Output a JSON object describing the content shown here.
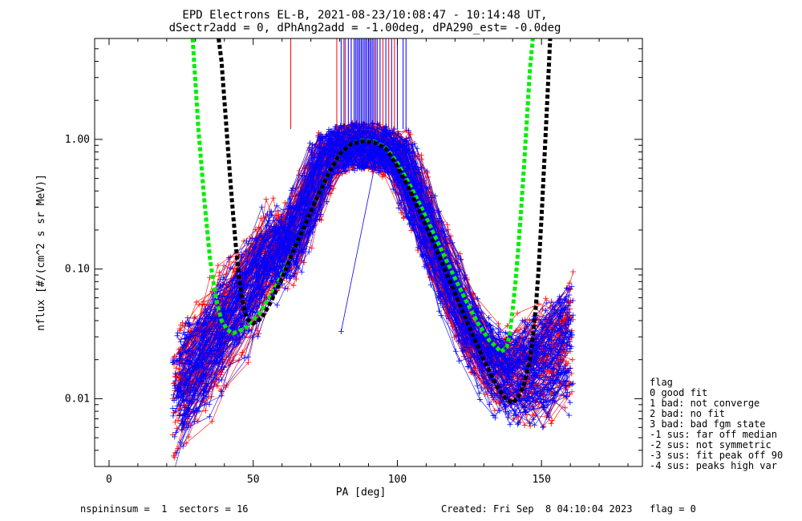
{
  "chart_data": {
    "type": "line",
    "title": "EPD Electrons EL-B, 2021-08-23/10:08:47 - 10:14:48 UT,",
    "subtitle": "dSectr2add = 0, dPhAng2add = -1.00deg, dPA290_est=  -0.0deg",
    "xlabel": "PA [deg]",
    "ylabel": "nflux [#/(cm^2 s sr MeV)]",
    "xlim": [
      -5,
      185
    ],
    "ylim": [
      0.003,
      6.0
    ],
    "yscale": "log",
    "x_ticks": [
      {
        "value": 0,
        "label": "0"
      },
      {
        "value": 50,
        "label": "50"
      },
      {
        "value": 100,
        "label": "100"
      },
      {
        "value": 150,
        "label": "150"
      }
    ],
    "y_ticks": [
      {
        "value": 0.01,
        "label": "0.01"
      },
      {
        "value": 0.1,
        "label": "0.10"
      },
      {
        "value": 1.0,
        "label": "1.00"
      }
    ],
    "colors": {
      "red": "#ff0000",
      "blue": "#0000ff",
      "green": "#00ee00",
      "black": "#000000"
    },
    "fit_green": {
      "name": "",
      "x": [
        29,
        31,
        33,
        35,
        37,
        39,
        41,
        43,
        45,
        48,
        52,
        56,
        60,
        64,
        68,
        72,
        76,
        80,
        84,
        88,
        92,
        96,
        100,
        104,
        108,
        112,
        116,
        120,
        124,
        128,
        132,
        136,
        138,
        139,
        140,
        141,
        142,
        143,
        144,
        145,
        146,
        147
      ],
      "y": [
        6.0,
        1.2,
        0.35,
        0.12,
        0.06,
        0.04,
        0.034,
        0.032,
        0.033,
        0.036,
        0.045,
        0.062,
        0.09,
        0.14,
        0.22,
        0.35,
        0.54,
        0.77,
        0.92,
        0.98,
        0.96,
        0.86,
        0.66,
        0.46,
        0.31,
        0.2,
        0.13,
        0.085,
        0.056,
        0.038,
        0.028,
        0.023,
        0.025,
        0.032,
        0.048,
        0.08,
        0.15,
        0.3,
        0.65,
        1.5,
        3.5,
        6.0
      ]
    },
    "fit_black": {
      "name": "",
      "x": [
        38,
        39,
        40,
        41,
        42,
        43,
        44,
        45,
        46,
        47,
        48,
        50,
        53,
        56,
        60,
        64,
        68,
        72,
        76,
        80,
        84,
        88,
        92,
        96,
        100,
        104,
        108,
        112,
        116,
        120,
        124,
        128,
        132,
        135,
        138,
        140,
        142,
        144,
        146,
        147,
        148,
        149,
        150,
        151,
        152,
        153
      ],
      "y": [
        6.0,
        4.0,
        2.0,
        1.0,
        0.5,
        0.27,
        0.15,
        0.09,
        0.062,
        0.048,
        0.041,
        0.038,
        0.042,
        0.055,
        0.085,
        0.14,
        0.22,
        0.35,
        0.54,
        0.77,
        0.92,
        0.97,
        0.95,
        0.85,
        0.62,
        0.42,
        0.27,
        0.17,
        0.105,
        0.065,
        0.04,
        0.025,
        0.016,
        0.012,
        0.0098,
        0.0093,
        0.0103,
        0.013,
        0.02,
        0.03,
        0.05,
        0.1,
        0.25,
        0.7,
        2.0,
        6.0
      ]
    },
    "vlines": {
      "y_from": 1.2,
      "y_to": 6.0,
      "red": [
        63,
        79,
        82,
        84,
        86.5,
        89,
        90.5,
        92.5,
        95,
        97,
        99
      ],
      "blue": [
        80.5,
        81.5,
        83,
        84,
        85,
        85.5,
        86,
        86.5,
        87,
        87.5,
        88,
        88.5,
        89,
        89.5,
        90,
        90.5,
        91,
        91.5,
        92,
        93,
        94,
        96,
        98,
        100,
        102,
        103
      ]
    },
    "series": [
      {
        "name": "",
        "color": "red",
        "count": 95,
        "seed": 7
      },
      {
        "name": "",
        "color": "blue",
        "count": 95,
        "seed": 13
      }
    ],
    "outlier_segment": {
      "x": [
        80.5,
        92
      ],
      "y": [
        0.033,
        0.6
      ]
    },
    "legend": {
      "placement": "right",
      "title": "flag",
      "entries": [
        " 0 good fit",
        " 1 bad: not converge",
        " 2 bad: no fit",
        " 3 bad: bad fgm state",
        "-1 sus: far off median",
        "-2 sus: not symmetric",
        "-3 sus: fit peak off 90",
        "-4 sus: peaks high var"
      ]
    },
    "footer": {
      "left": "nspininsum =  1  sectors = 16",
      "right": "Created: Fri Sep  8 04:10:04 2023   flag = 0"
    }
  }
}
